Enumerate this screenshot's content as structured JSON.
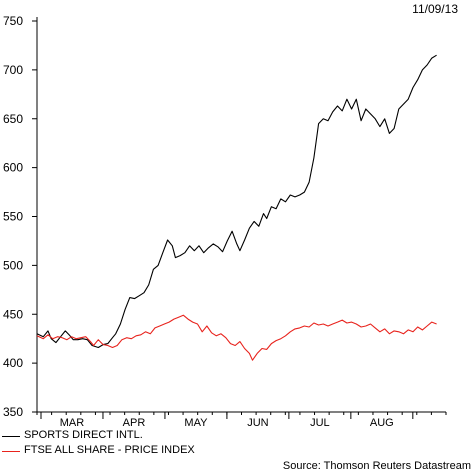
{
  "date_label": "11/09/13",
  "source_label": "Source: Thomson Reuters Datastream",
  "chart_data": {
    "type": "line",
    "title": "",
    "xlabel": "",
    "ylabel": "",
    "ylim": [
      350,
      750
    ],
    "yticks": [
      350,
      400,
      450,
      500,
      550,
      600,
      650,
      700,
      750
    ],
    "grid": false,
    "legend_position": "bottom-left",
    "x_month_labels": [
      "MAR",
      "APR",
      "MAY",
      "JUN",
      "JUL",
      "AUG"
    ],
    "x_range": [
      0,
      26
    ],
    "series": [
      {
        "name": "SPORTS DIRECT INTL.",
        "color": "#000000",
        "points": [
          [
            0.0,
            430
          ],
          [
            0.4,
            427
          ],
          [
            0.7,
            433
          ],
          [
            0.9,
            425
          ],
          [
            1.2,
            421
          ],
          [
            1.5,
            427
          ],
          [
            1.8,
            433
          ],
          [
            2.1,
            428
          ],
          [
            2.3,
            424
          ],
          [
            2.6,
            424
          ],
          [
            2.9,
            425
          ],
          [
            3.2,
            424
          ],
          [
            3.5,
            418
          ],
          [
            3.9,
            416
          ],
          [
            4.2,
            419
          ],
          [
            4.5,
            420
          ],
          [
            4.8,
            426
          ],
          [
            5.0,
            430
          ],
          [
            5.3,
            440
          ],
          [
            5.6,
            455
          ],
          [
            5.9,
            467
          ],
          [
            6.2,
            466
          ],
          [
            6.5,
            469
          ],
          [
            6.8,
            472
          ],
          [
            7.1,
            480
          ],
          [
            7.4,
            496
          ],
          [
            7.7,
            500
          ],
          [
            8.0,
            513
          ],
          [
            8.3,
            526
          ],
          [
            8.6,
            520
          ],
          [
            8.8,
            508
          ],
          [
            9.1,
            510
          ],
          [
            9.4,
            513
          ],
          [
            9.7,
            520
          ],
          [
            10.0,
            515
          ],
          [
            10.3,
            520
          ],
          [
            10.6,
            513
          ],
          [
            10.9,
            518
          ],
          [
            11.2,
            522
          ],
          [
            11.5,
            519
          ],
          [
            11.8,
            514
          ],
          [
            12.1,
            525
          ],
          [
            12.4,
            535
          ],
          [
            12.7,
            522
          ],
          [
            12.9,
            515
          ],
          [
            13.2,
            526
          ],
          [
            13.5,
            538
          ],
          [
            13.8,
            545
          ],
          [
            14.1,
            540
          ],
          [
            14.4,
            553
          ],
          [
            14.6,
            548
          ],
          [
            14.9,
            560
          ],
          [
            15.2,
            558
          ],
          [
            15.5,
            568
          ],
          [
            15.8,
            565
          ],
          [
            16.1,
            572
          ],
          [
            16.4,
            570
          ],
          [
            16.7,
            572
          ],
          [
            17.0,
            575
          ],
          [
            17.3,
            585
          ],
          [
            17.6,
            610
          ],
          [
            17.9,
            645
          ],
          [
            18.2,
            650
          ],
          [
            18.5,
            648
          ],
          [
            18.8,
            657
          ],
          [
            19.1,
            663
          ],
          [
            19.4,
            658
          ],
          [
            19.7,
            670
          ],
          [
            20.0,
            660
          ],
          [
            20.3,
            670
          ],
          [
            20.6,
            648
          ],
          [
            20.9,
            660
          ],
          [
            21.2,
            655
          ],
          [
            21.5,
            650
          ],
          [
            21.8,
            642
          ],
          [
            22.1,
            650
          ],
          [
            22.4,
            635
          ],
          [
            22.7,
            640
          ],
          [
            23.0,
            660
          ],
          [
            23.3,
            665
          ],
          [
            23.6,
            670
          ],
          [
            23.9,
            682
          ],
          [
            24.2,
            690
          ],
          [
            24.5,
            700
          ],
          [
            24.8,
            705
          ],
          [
            25.1,
            712
          ],
          [
            25.4,
            715
          ]
        ]
      },
      {
        "name": "FTSE ALL SHARE - PRICE INDEX",
        "color": "#e8231d",
        "points": [
          [
            0.0,
            428
          ],
          [
            0.4,
            425
          ],
          [
            0.7,
            429
          ],
          [
            1.0,
            425
          ],
          [
            1.3,
            427
          ],
          [
            1.6,
            426
          ],
          [
            1.9,
            424
          ],
          [
            2.2,
            427
          ],
          [
            2.5,
            425
          ],
          [
            2.8,
            426
          ],
          [
            3.1,
            427
          ],
          [
            3.4,
            422
          ],
          [
            3.6,
            418
          ],
          [
            3.9,
            424
          ],
          [
            4.2,
            419
          ],
          [
            4.5,
            418
          ],
          [
            4.8,
            416
          ],
          [
            5.1,
            418
          ],
          [
            5.4,
            424
          ],
          [
            5.7,
            426
          ],
          [
            6.0,
            425
          ],
          [
            6.3,
            428
          ],
          [
            6.6,
            429
          ],
          [
            6.9,
            432
          ],
          [
            7.2,
            430
          ],
          [
            7.5,
            436
          ],
          [
            7.8,
            438
          ],
          [
            8.1,
            440
          ],
          [
            8.4,
            442
          ],
          [
            8.7,
            445
          ],
          [
            9.0,
            447
          ],
          [
            9.3,
            449
          ],
          [
            9.6,
            445
          ],
          [
            9.9,
            442
          ],
          [
            10.2,
            440
          ],
          [
            10.5,
            432
          ],
          [
            10.8,
            438
          ],
          [
            11.1,
            431
          ],
          [
            11.4,
            428
          ],
          [
            11.7,
            430
          ],
          [
            12.0,
            426
          ],
          [
            12.3,
            420
          ],
          [
            12.6,
            418
          ],
          [
            12.9,
            422
          ],
          [
            13.2,
            415
          ],
          [
            13.5,
            410
          ],
          [
            13.7,
            403
          ],
          [
            14.0,
            410
          ],
          [
            14.3,
            415
          ],
          [
            14.6,
            414
          ],
          [
            14.9,
            420
          ],
          [
            15.2,
            423
          ],
          [
            15.5,
            425
          ],
          [
            15.8,
            428
          ],
          [
            16.1,
            432
          ],
          [
            16.4,
            435
          ],
          [
            16.7,
            436
          ],
          [
            17.0,
            438
          ],
          [
            17.3,
            437
          ],
          [
            17.6,
            441
          ],
          [
            17.9,
            439
          ],
          [
            18.2,
            440
          ],
          [
            18.5,
            438
          ],
          [
            18.8,
            440
          ],
          [
            19.1,
            442
          ],
          [
            19.4,
            444
          ],
          [
            19.7,
            441
          ],
          [
            20.0,
            442
          ],
          [
            20.3,
            440
          ],
          [
            20.6,
            437
          ],
          [
            20.9,
            438
          ],
          [
            21.2,
            440
          ],
          [
            21.5,
            436
          ],
          [
            21.8,
            432
          ],
          [
            22.1,
            435
          ],
          [
            22.4,
            430
          ],
          [
            22.7,
            433
          ],
          [
            23.0,
            432
          ],
          [
            23.3,
            430
          ],
          [
            23.6,
            434
          ],
          [
            23.9,
            432
          ],
          [
            24.2,
            437
          ],
          [
            24.5,
            434
          ],
          [
            24.8,
            438
          ],
          [
            25.1,
            442
          ],
          [
            25.4,
            440
          ]
        ]
      }
    ]
  }
}
